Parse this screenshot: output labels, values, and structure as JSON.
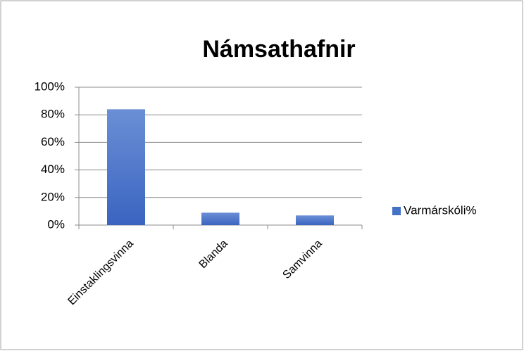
{
  "chart_data": {
    "type": "bar",
    "title": "Námsathafnir",
    "categories": [
      "Einstaklingsvinna",
      "Blanda",
      "Samvinna"
    ],
    "series": [
      {
        "name": "Varmárskóli%",
        "color": "#4472c4",
        "values": [
          84,
          9,
          7
        ]
      }
    ],
    "ylim": [
      0,
      100
    ],
    "yticks": [
      {
        "value": 0,
        "label": "0%"
      },
      {
        "value": 20,
        "label": "20%"
      },
      {
        "value": 40,
        "label": "40%"
      },
      {
        "value": 60,
        "label": "60%"
      },
      {
        "value": 80,
        "label": "80%"
      },
      {
        "value": 100,
        "label": "100%"
      }
    ],
    "grid": true,
    "legend": "right"
  }
}
